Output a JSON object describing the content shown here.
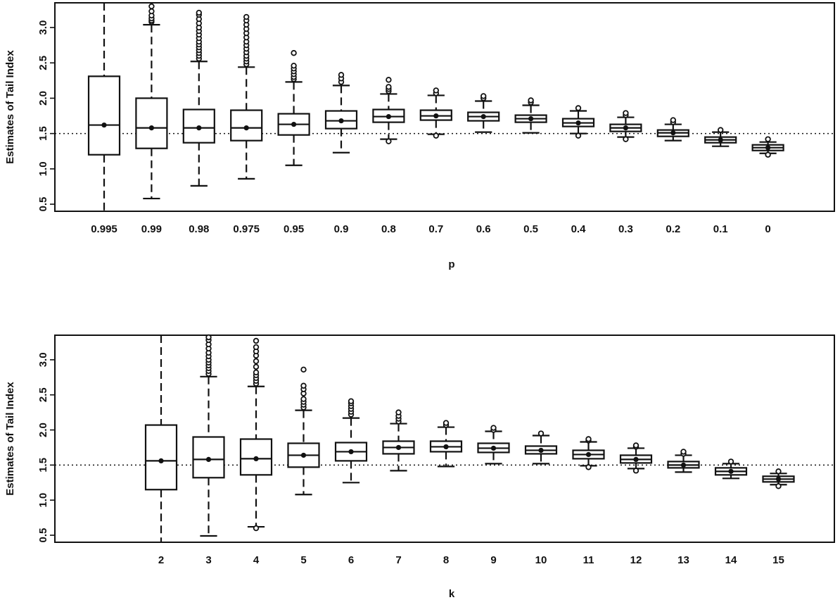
{
  "chart_data": [
    {
      "type": "boxplot",
      "xlabel": "p",
      "ylabel": "Estimates of Tail Index",
      "ylim": [
        0.4,
        3.35
      ],
      "yticks": [
        "0.5",
        "1.0",
        "1.5",
        "2.0",
        "2.5",
        "3.0"
      ],
      "reference_line": 1.5,
      "categories": [
        "0.995",
        "0.99",
        "0.98",
        "0.975",
        "0.95",
        "0.9",
        "0.8",
        "0.7",
        "0.6",
        "0.5",
        "0.4",
        "0.3",
        "0.2",
        "0.1",
        "0"
      ],
      "boxes": [
        {
          "whisker_low": 0.4,
          "q1": 1.2,
          "median": 1.62,
          "mean": 1.62,
          "q3": 2.31,
          "whisker_high": 3.35,
          "outliers": []
        },
        {
          "whisker_low": 0.58,
          "q1": 1.29,
          "median": 1.58,
          "mean": 1.58,
          "q3": 2.0,
          "whisker_high": 3.04,
          "outliers": [
            3.08,
            3.1,
            3.13,
            3.17,
            3.23,
            3.3
          ]
        },
        {
          "whisker_low": 0.76,
          "q1": 1.37,
          "median": 1.58,
          "mean": 1.58,
          "q3": 1.84,
          "whisker_high": 2.52,
          "outliers": [
            2.56,
            2.6,
            2.64,
            2.68,
            2.72,
            2.76,
            2.8,
            2.85,
            2.9,
            2.95,
            3.0,
            3.06,
            3.12,
            3.18,
            3.21
          ]
        },
        {
          "whisker_low": 0.86,
          "q1": 1.4,
          "median": 1.58,
          "mean": 1.58,
          "q3": 1.83,
          "whisker_high": 2.44,
          "outliers": [
            2.48,
            2.52,
            2.56,
            2.6,
            2.65,
            2.7,
            2.75,
            2.8,
            2.86,
            2.92,
            2.98,
            3.04,
            3.1,
            3.15
          ]
        },
        {
          "whisker_low": 1.05,
          "q1": 1.48,
          "median": 1.63,
          "mean": 1.63,
          "q3": 1.78,
          "whisker_high": 2.23,
          "outliers": [
            2.27,
            2.3,
            2.34,
            2.38,
            2.42,
            2.46,
            2.64
          ]
        },
        {
          "whisker_low": 1.23,
          "q1": 1.57,
          "median": 1.68,
          "mean": 1.68,
          "q3": 1.82,
          "whisker_high": 2.18,
          "outliers": [
            2.23,
            2.28,
            2.33
          ]
        },
        {
          "whisker_low": 1.42,
          "q1": 1.66,
          "median": 1.74,
          "mean": 1.74,
          "q3": 1.84,
          "whisker_high": 2.06,
          "outliers": [
            1.39,
            2.1,
            2.13,
            2.16,
            2.26
          ]
        },
        {
          "whisker_low": 1.49,
          "q1": 1.69,
          "median": 1.75,
          "mean": 1.75,
          "q3": 1.83,
          "whisker_high": 2.04,
          "outliers": [
            1.47,
            2.07,
            2.11
          ]
        },
        {
          "whisker_low": 1.52,
          "q1": 1.68,
          "median": 1.74,
          "mean": 1.74,
          "q3": 1.8,
          "whisker_high": 1.96,
          "outliers": [
            2.0,
            2.03
          ]
        },
        {
          "whisker_low": 1.51,
          "q1": 1.66,
          "median": 1.71,
          "mean": 1.71,
          "q3": 1.76,
          "whisker_high": 1.9,
          "outliers": [
            1.94,
            1.97
          ]
        },
        {
          "whisker_low": 1.5,
          "q1": 1.6,
          "median": 1.65,
          "mean": 1.65,
          "q3": 1.71,
          "whisker_high": 1.82,
          "outliers": [
            1.47,
            1.86
          ]
        },
        {
          "whisker_low": 1.45,
          "q1": 1.53,
          "median": 1.58,
          "mean": 1.58,
          "q3": 1.63,
          "whisker_high": 1.73,
          "outliers": [
            1.42,
            1.76,
            1.79
          ]
        },
        {
          "whisker_low": 1.4,
          "q1": 1.46,
          "median": 1.51,
          "mean": 1.51,
          "q3": 1.55,
          "whisker_high": 1.63,
          "outliers": [
            1.66,
            1.69
          ]
        },
        {
          "whisker_low": 1.32,
          "q1": 1.37,
          "median": 1.41,
          "mean": 1.41,
          "q3": 1.45,
          "whisker_high": 1.52,
          "outliers": [
            1.55
          ]
        },
        {
          "whisker_low": 1.22,
          "q1": 1.26,
          "median": 1.3,
          "mean": 1.3,
          "q3": 1.34,
          "whisker_high": 1.38,
          "outliers": [
            1.2,
            1.42
          ]
        }
      ]
    },
    {
      "type": "boxplot",
      "xlabel": "k",
      "ylabel": "Estimates of Tail Index",
      "ylim": [
        0.4,
        3.35
      ],
      "yticks": [
        "0.5",
        "1.0",
        "1.5",
        "2.0",
        "2.5",
        "3.0"
      ],
      "reference_line": 1.5,
      "categories": [
        "2",
        "3",
        "4",
        "5",
        "6",
        "7",
        "8",
        "9",
        "10",
        "11",
        "12",
        "13",
        "14",
        "15"
      ],
      "boxes": [
        {
          "whisker_low": 0.4,
          "q1": 1.15,
          "median": 1.56,
          "mean": 1.56,
          "q3": 2.07,
          "whisker_high": 3.35,
          "outliers": []
        },
        {
          "whisker_low": 0.49,
          "q1": 1.32,
          "median": 1.58,
          "mean": 1.58,
          "q3": 1.9,
          "whisker_high": 2.76,
          "outliers": [
            2.8,
            2.84,
            2.88,
            2.92,
            2.96,
            3.0,
            3.05,
            3.1,
            3.16,
            3.22,
            3.28,
            3.32
          ]
        },
        {
          "whisker_low": 0.62,
          "q1": 1.36,
          "median": 1.59,
          "mean": 1.59,
          "q3": 1.87,
          "whisker_high": 2.62,
          "outliers": [
            0.6,
            2.66,
            2.7,
            2.74,
            2.78,
            2.82,
            2.9,
            2.98,
            3.06,
            3.12,
            3.18,
            3.27
          ]
        },
        {
          "whisker_low": 1.08,
          "q1": 1.47,
          "median": 1.64,
          "mean": 1.64,
          "q3": 1.81,
          "whisker_high": 2.28,
          "outliers": [
            2.32,
            2.36,
            2.4,
            2.44,
            2.52,
            2.58,
            2.63,
            2.86
          ]
        },
        {
          "whisker_low": 1.25,
          "q1": 1.56,
          "median": 1.69,
          "mean": 1.69,
          "q3": 1.82,
          "whisker_high": 2.17,
          "outliers": [
            2.22,
            2.26,
            2.3,
            2.34,
            2.38,
            2.41
          ]
        },
        {
          "whisker_low": 1.42,
          "q1": 1.66,
          "median": 1.75,
          "mean": 1.75,
          "q3": 1.84,
          "whisker_high": 2.09,
          "outliers": [
            2.12,
            2.16,
            2.2,
            2.25
          ]
        },
        {
          "whisker_low": 1.48,
          "q1": 1.69,
          "median": 1.76,
          "mean": 1.76,
          "q3": 1.84,
          "whisker_high": 2.04,
          "outliers": [
            2.07,
            2.1
          ]
        },
        {
          "whisker_low": 1.52,
          "q1": 1.68,
          "median": 1.74,
          "mean": 1.74,
          "q3": 1.81,
          "whisker_high": 1.98,
          "outliers": [
            2.0,
            2.03
          ]
        },
        {
          "whisker_low": 1.52,
          "q1": 1.66,
          "median": 1.71,
          "mean": 1.71,
          "q3": 1.77,
          "whisker_high": 1.92,
          "outliers": [
            1.95
          ]
        },
        {
          "whisker_low": 1.49,
          "q1": 1.59,
          "median": 1.65,
          "mean": 1.65,
          "q3": 1.71,
          "whisker_high": 1.83,
          "outliers": [
            1.47,
            1.85,
            1.87
          ]
        },
        {
          "whisker_low": 1.45,
          "q1": 1.53,
          "median": 1.58,
          "mean": 1.58,
          "q3": 1.64,
          "whisker_high": 1.74,
          "outliers": [
            1.42,
            1.76,
            1.78
          ]
        },
        {
          "whisker_low": 1.4,
          "q1": 1.46,
          "median": 1.5,
          "mean": 1.5,
          "q3": 1.55,
          "whisker_high": 1.64,
          "outliers": [
            1.66,
            1.69
          ]
        },
        {
          "whisker_low": 1.31,
          "q1": 1.36,
          "median": 1.41,
          "mean": 1.41,
          "q3": 1.46,
          "whisker_high": 1.52,
          "outliers": [
            1.55
          ]
        },
        {
          "whisker_low": 1.22,
          "q1": 1.26,
          "median": 1.3,
          "mean": 1.3,
          "q3": 1.34,
          "whisker_high": 1.38,
          "outliers": [
            1.2,
            1.41
          ]
        }
      ]
    }
  ]
}
